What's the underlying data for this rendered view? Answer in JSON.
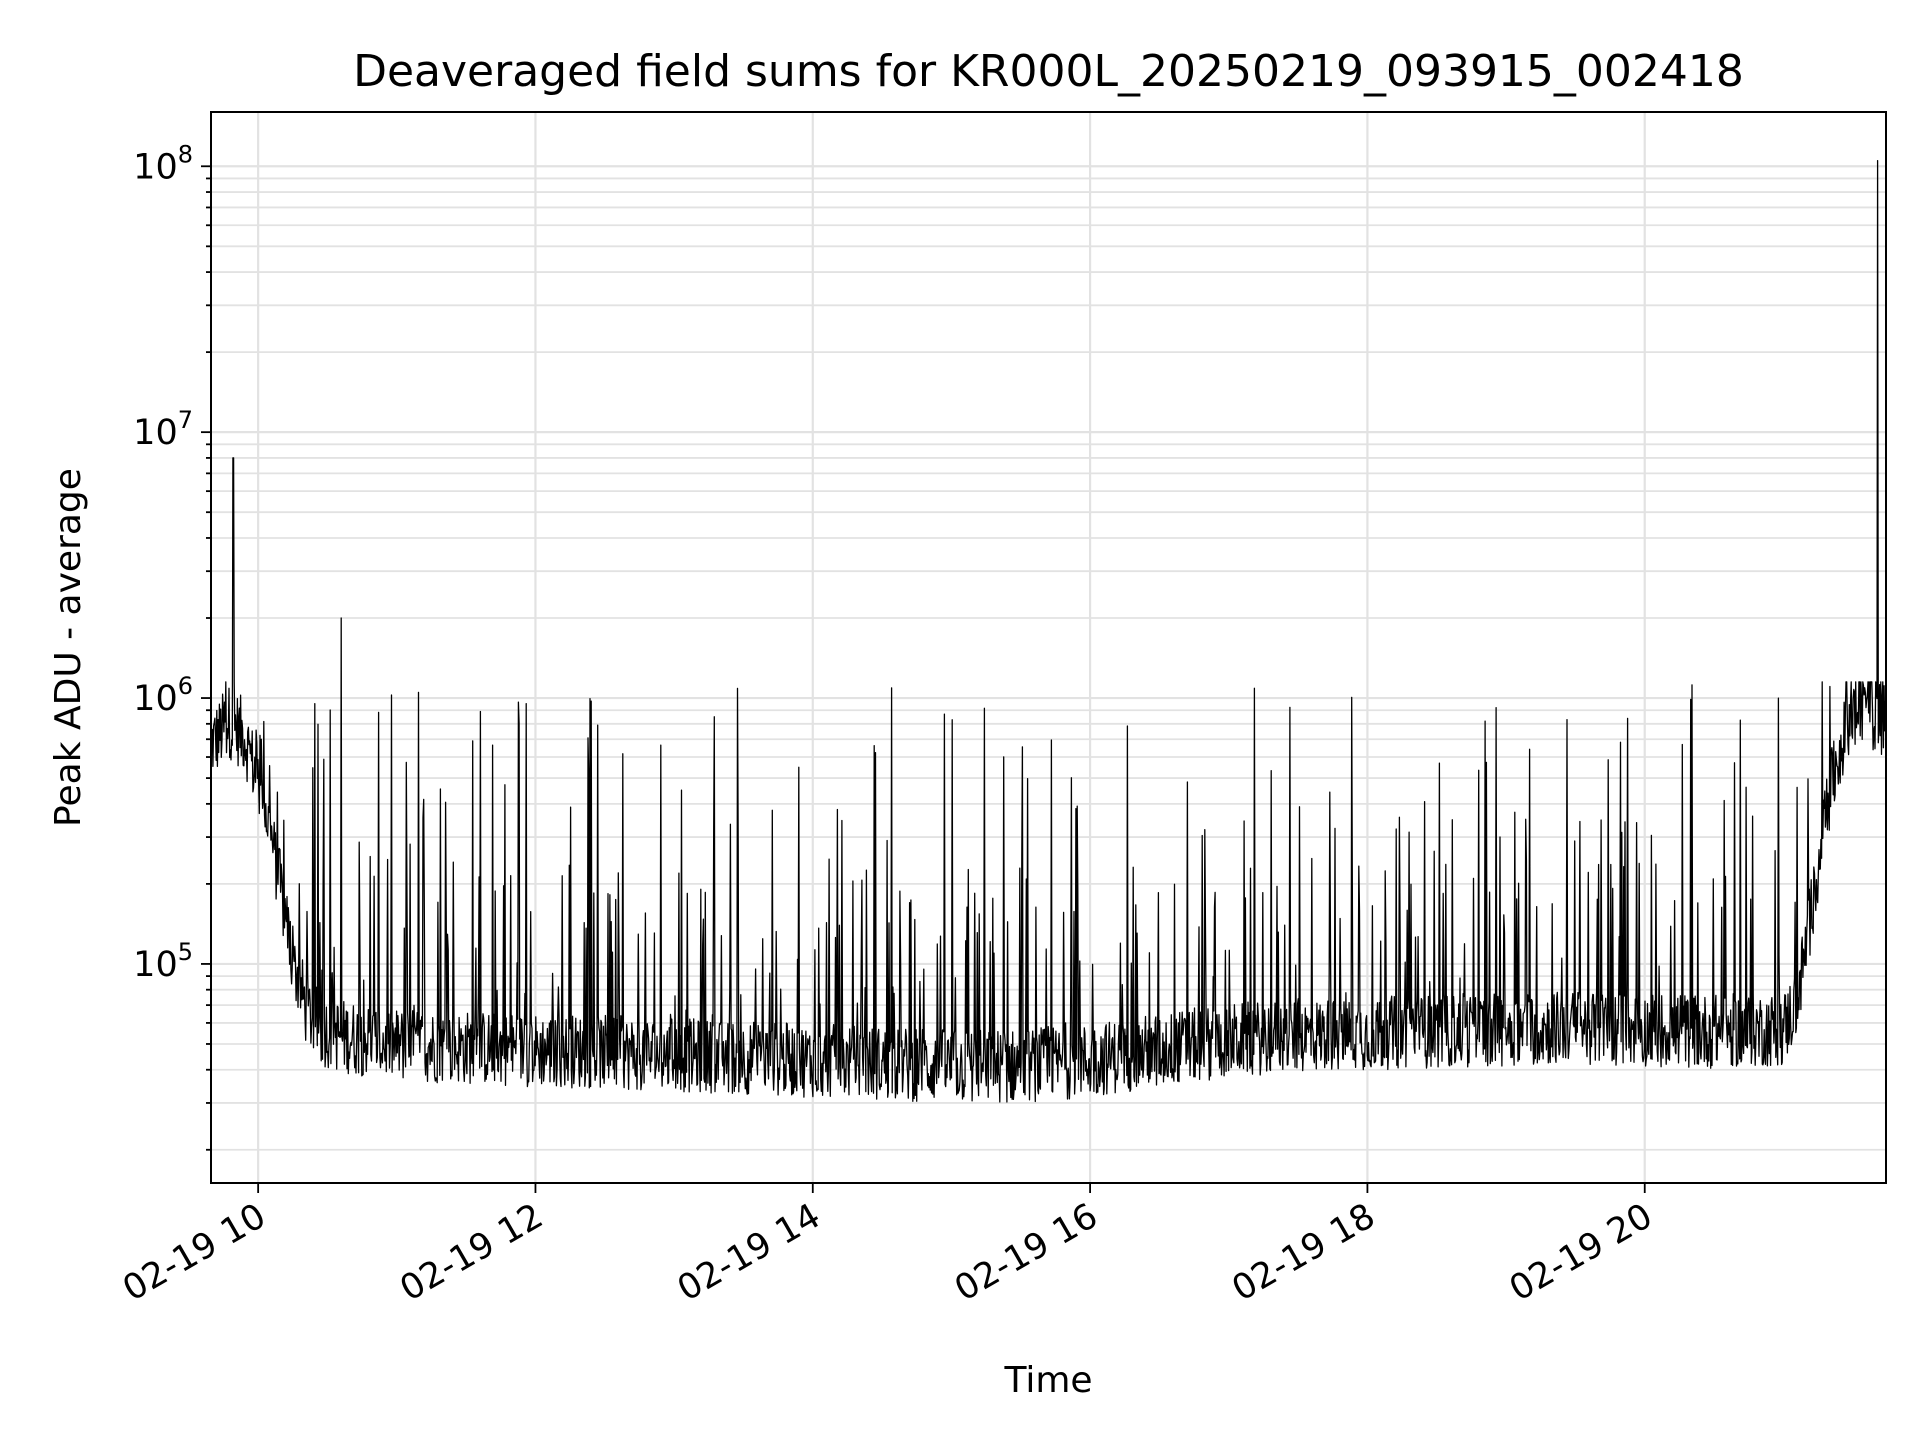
{
  "chart_data": {
    "type": "line",
    "title": "Deaveraged field sums for KR000L_20250219_093915_002418",
    "xlabel": "Time",
    "ylabel": "Peak ADU - average",
    "yscale": "log",
    "ylim": [
      15000,
      160000000
    ],
    "xlim": [
      "02-19 09:39",
      "02-19 21:44"
    ],
    "grid": true,
    "x_ticks": [
      {
        "label": "02-19 10",
        "hour": 10
      },
      {
        "label": "02-19 12",
        "hour": 12
      },
      {
        "label": "02-19 14",
        "hour": 14
      },
      {
        "label": "02-19 16",
        "hour": 16
      },
      {
        "label": "02-19 18",
        "hour": 18
      },
      {
        "label": "02-19 20",
        "hour": 20
      }
    ],
    "y_ticks": [
      {
        "base": "10",
        "exp": "5",
        "value": 100000
      },
      {
        "base": "10",
        "exp": "6",
        "value": 1000000
      },
      {
        "base": "10",
        "exp": "7",
        "value": 10000000
      },
      {
        "base": "10",
        "exp": "8",
        "value": 100000000
      }
    ],
    "series": [
      {
        "color": "#000000",
        "x_hours": [
          9.66,
          9.72,
          9.78,
          9.84,
          9.9,
          9.96,
          10.05,
          10.15,
          10.25,
          10.35,
          10.45,
          10.6,
          10.8,
          11.0,
          11.5,
          12.0,
          12.5,
          13.0,
          13.5,
          14.0,
          14.5,
          15.0,
          15.5,
          16.0,
          16.5,
          17.0,
          17.5,
          18.0,
          18.5,
          19.0,
          19.5,
          20.0,
          20.5,
          21.0,
          21.1,
          21.2,
          21.3,
          21.4,
          21.5,
          21.6,
          21.7
        ],
        "baseline": [
          650000,
          700000,
          800000,
          750000,
          700000,
          550000,
          380000,
          200000,
          100000,
          65000,
          55000,
          52000,
          50000,
          48000,
          47000,
          46000,
          45000,
          44000,
          43000,
          42000,
          41000,
          40000,
          40000,
          42000,
          46000,
          50000,
          52000,
          53000,
          54000,
          55000,
          56000,
          55000,
          54000,
          55000,
          70000,
          150000,
          350000,
          600000,
          850000,
          900000,
          800000
        ],
        "spikes": [
          {
            "x": 9.82,
            "y": 8000000
          },
          {
            "x": 10.6,
            "y": 2000000
          },
          {
            "x": 21.68,
            "y": 105000000
          }
        ]
      }
    ]
  }
}
